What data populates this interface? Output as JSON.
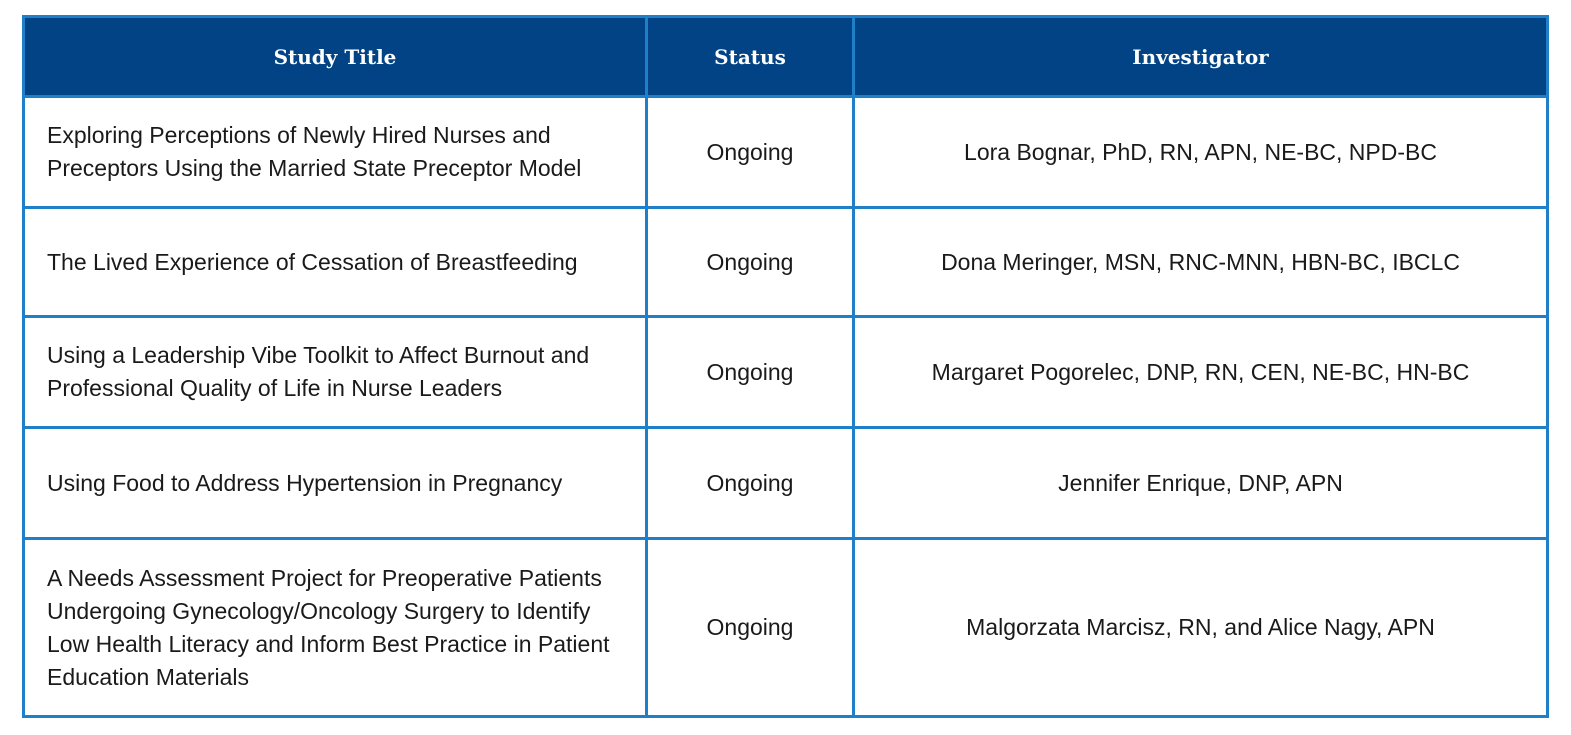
{
  "table": {
    "headers": {
      "title": "Study Title",
      "status": "Status",
      "investigator": "Investigator"
    },
    "rows": [
      {
        "title": "Exploring Perceptions of Newly Hired Nurses and Preceptors Using the Married State Preceptor Model",
        "status": "Ongoing",
        "investigator": "Lora Bognar, PhD, RN, APN, NE-BC, NPD-BC"
      },
      {
        "title": "The Lived Experience of Cessation of Breastfeeding",
        "status": "Ongoing",
        "investigator": "Dona Meringer, MSN, RNC-MNN, HBN-BC, IBCLC"
      },
      {
        "title": "Using a Leadership Vibe Toolkit to Affect Burnout and Professional Quality of Life in Nurse Leaders",
        "status": "Ongoing",
        "investigator": "Margaret Pogorelec, DNP, RN, CEN, NE-BC, HN-BC"
      },
      {
        "title": "Using Food to Address Hypertension in Pregnancy",
        "status": "Ongoing",
        "investigator": "Jennifer Enrique, DNP, APN"
      },
      {
        "title": "A Needs Assessment Project for Preoperative Patients Undergoing Gynecology/Oncology Surgery to Identify Low Health Literacy and Inform Best Practice in Patient Education Materials",
        "status": "Ongoing",
        "investigator": "Malgorzata Marcisz, RN, and Alice Nagy, APN"
      }
    ]
  },
  "colors": {
    "header_background": "#014385",
    "border": "#1f7fc8",
    "header_text": "#ffffff",
    "body_text": "#1a1a1a"
  }
}
